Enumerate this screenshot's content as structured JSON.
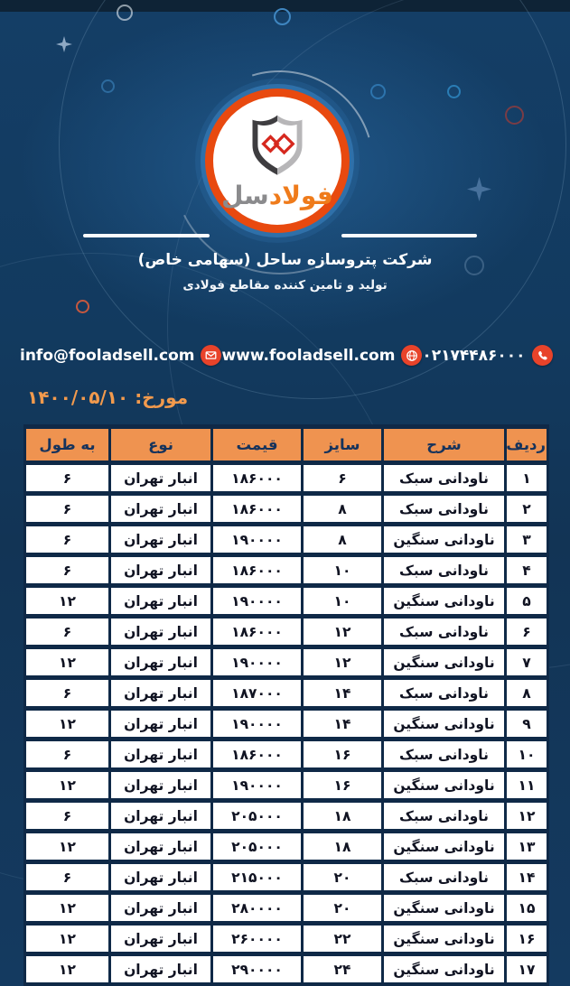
{
  "logo": {
    "brand_part_orange": "فولاد",
    "brand_part_gray": "سل",
    "company_line1": "شرکت پتروسازه ساحل (سهامی خاص)",
    "company_line2": "تولید و تامین کننده مقاطع فولادی"
  },
  "contact": {
    "email": "info@fooladsell.com",
    "website": "www.fooladsell.com",
    "phone": "۰۲۱۷۴۴۸۶۰۰۰"
  },
  "date_label": "مورخ: ۱۴۰۰/۰۵/۱۰",
  "icons": [
    "shield-logo-icon",
    "email-icon",
    "globe-icon",
    "phone-icon"
  ],
  "colors": {
    "background_navy": "#123a5f",
    "top_strip": "#0e2336",
    "accent_orange": "#e8490f",
    "table_header_orange": "#ef9350",
    "icon_red": "#e8432a",
    "date_orange": "#f29a4d",
    "table_frame_navy": "#0f2947",
    "logo_blue_ring": "#2f70a9"
  },
  "table": {
    "headers": [
      "ردیف",
      "شرح",
      "سایز",
      "قیمت",
      "نوع",
      "به طول"
    ],
    "rows": [
      [
        "۱",
        "ناودانی سبک",
        "۶",
        "۱۸۶۰۰۰",
        "انبار تهران",
        "۶"
      ],
      [
        "۲",
        "ناودانی سبک",
        "۸",
        "۱۸۶۰۰۰",
        "انبار تهران",
        "۶"
      ],
      [
        "۳",
        "ناودانی سنگین",
        "۸",
        "۱۹۰۰۰۰",
        "انبار تهران",
        "۶"
      ],
      [
        "۴",
        "ناودانی سبک",
        "۱۰",
        "۱۸۶۰۰۰",
        "انبار تهران",
        "۶"
      ],
      [
        "۵",
        "ناودانی سنگین",
        "۱۰",
        "۱۹۰۰۰۰",
        "انبار تهران",
        "۱۲"
      ],
      [
        "۶",
        "ناودانی سبک",
        "۱۲",
        "۱۸۶۰۰۰",
        "انبار تهران",
        "۶"
      ],
      [
        "۷",
        "ناودانی سنگین",
        "۱۲",
        "۱۹۰۰۰۰",
        "انبار تهران",
        "۱۲"
      ],
      [
        "۸",
        "ناودانی سبک",
        "۱۴",
        "۱۸۷۰۰۰",
        "انبار تهران",
        "۶"
      ],
      [
        "۹",
        "ناودانی سنگین",
        "۱۴",
        "۱۹۰۰۰۰",
        "انبار تهران",
        "۱۲"
      ],
      [
        "۱۰",
        "ناودانی سبک",
        "۱۶",
        "۱۸۶۰۰۰",
        "انبار تهران",
        "۶"
      ],
      [
        "۱۱",
        "ناودانی سنگین",
        "۱۶",
        "۱۹۰۰۰۰",
        "انبار تهران",
        "۱۲"
      ],
      [
        "۱۲",
        "ناودانی سبک",
        "۱۸",
        "۲۰۵۰۰۰",
        "انبار تهران",
        "۶"
      ],
      [
        "۱۳",
        "ناودانی سنگین",
        "۱۸",
        "۲۰۵۰۰۰",
        "انبار تهران",
        "۱۲"
      ],
      [
        "۱۴",
        "ناودانی سبک",
        "۲۰",
        "۲۱۵۰۰۰",
        "انبار تهران",
        "۶"
      ],
      [
        "۱۵",
        "ناودانی سنگین",
        "۲۰",
        "۲۸۰۰۰۰",
        "انبار تهران",
        "۱۲"
      ],
      [
        "۱۶",
        "ناودانی سنگین",
        "۲۲",
        "۲۶۰۰۰۰",
        "انبار تهران",
        "۱۲"
      ],
      [
        "۱۷",
        "ناودانی سنگین",
        "۲۴",
        "۲۹۰۰۰۰",
        "انبار تهران",
        "۱۲"
      ]
    ]
  }
}
